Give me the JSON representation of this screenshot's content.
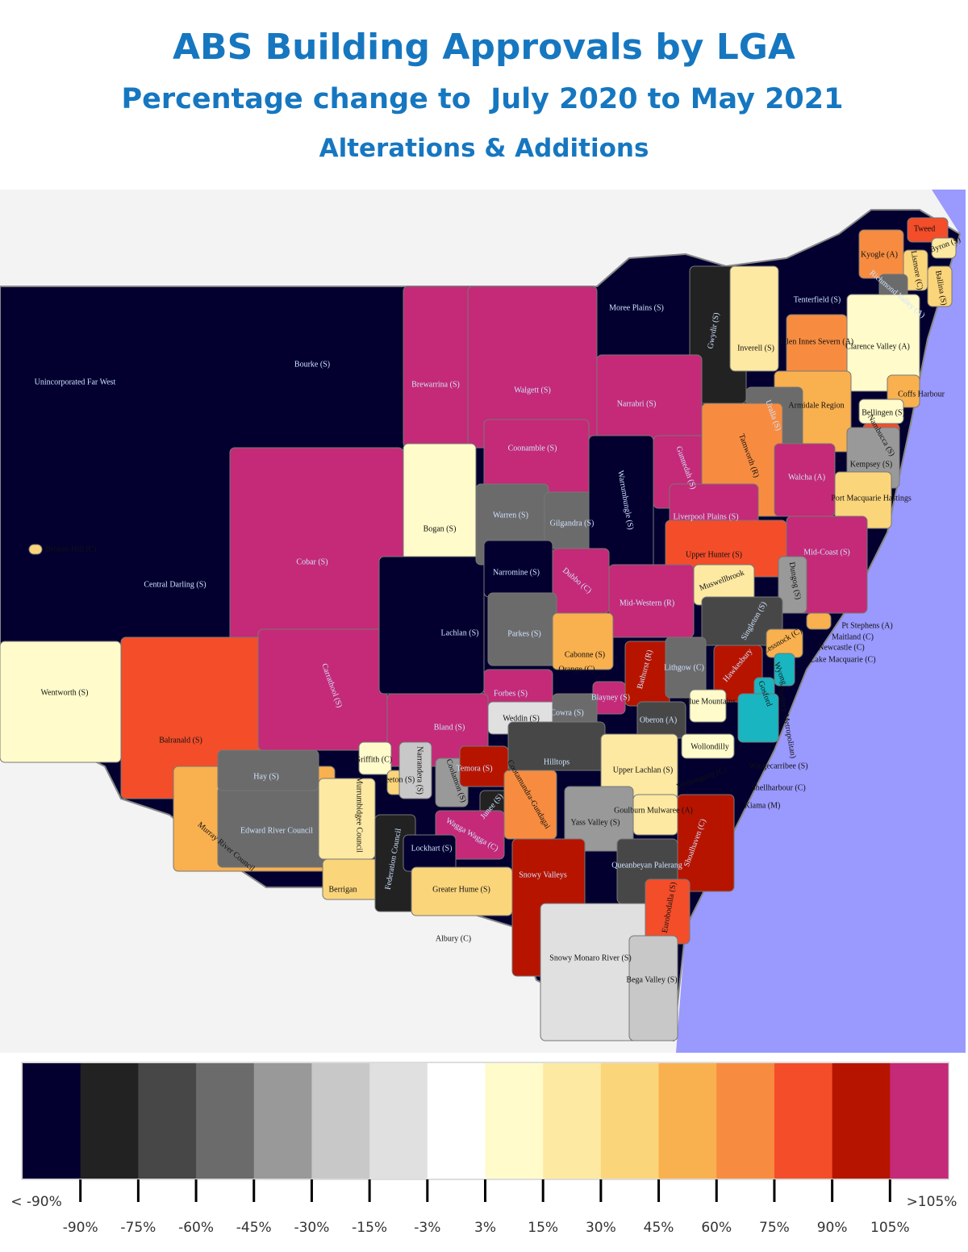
{
  "header": {
    "title": "ABS Building Approvals by LGA",
    "subtitle": "Percentage change to  July 2020 to May 2021",
    "subtitle2": "Alterations & Additions"
  },
  "map": {
    "regions": [
      {
        "name": "Unincorporated Far West",
        "color": "#03002f"
      },
      {
        "name": "Bourke (S)",
        "color": "#03002f"
      },
      {
        "name": "Central Darling (S)",
        "color": "#03002f"
      },
      {
        "name": "Moree Plains (S)",
        "color": "#03002f"
      },
      {
        "name": "Tenterfield (S)",
        "color": "#03002f"
      },
      {
        "name": "Broken Hill (C)",
        "color": "#fbd57a"
      },
      {
        "name": "Cobar (S)",
        "color": "#c42a77"
      },
      {
        "name": "Wentworth (S)",
        "color": "#fffbcb"
      },
      {
        "name": "Balranald (S)",
        "color": "#f44d2a"
      },
      {
        "name": "Carrathool (S)",
        "color": "#c42a77"
      },
      {
        "name": "Brewarrina (S)",
        "color": "#c42a77"
      },
      {
        "name": "Walgett (S)",
        "color": "#c42a77"
      },
      {
        "name": "Gwydir (S)",
        "color": "#222222"
      },
      {
        "name": "Inverell (S)",
        "color": "#fde9a2"
      },
      {
        "name": "Kyogle (A)",
        "color": "#f78c40"
      },
      {
        "name": "Tweed",
        "color": "#f44d2a"
      },
      {
        "name": "Byron (S)",
        "color": "#fde9a2"
      },
      {
        "name": "Lismore (C)",
        "color": "#fbd57a"
      },
      {
        "name": "Ballina (S)",
        "color": "#fbd57a"
      },
      {
        "name": "Richmond Valley (A)",
        "color": "#6b6b6b"
      },
      {
        "name": "Glen Innes Severn (A)",
        "color": "#f78c40"
      },
      {
        "name": "Clarence Valley (A)",
        "color": "#fffbcb"
      },
      {
        "name": "Armidale Region",
        "color": "#f9b04e"
      },
      {
        "name": "Coffs Harbour",
        "color": "#f9b04e"
      },
      {
        "name": "Bellingen (S)",
        "color": "#fffbcb"
      },
      {
        "name": "Uralla (S)",
        "color": "#6b6b6b"
      },
      {
        "name": "Nambucca (S)",
        "color": "#f44d2a"
      },
      {
        "name": "Kempsey (S)",
        "color": "#999999"
      },
      {
        "name": "Narrabri (S)",
        "color": "#c42a77"
      },
      {
        "name": "Coonamble (S)",
        "color": "#c42a77"
      },
      {
        "name": "Bogan (S)",
        "color": "#fffbcb"
      },
      {
        "name": "Lachlan (S)",
        "color": "#03002f"
      },
      {
        "name": "Warren (S)",
        "color": "#6b6b6b"
      },
      {
        "name": "Gilgandra (S)",
        "color": "#6b6b6b"
      },
      {
        "name": "Warrumbungle (S)",
        "color": "#03002f"
      },
      {
        "name": "Gunnedah (S)",
        "color": "#c42a77"
      },
      {
        "name": "Tamworth (R)",
        "color": "#f78c40"
      },
      {
        "name": "Walcha (A)",
        "color": "#c42a77"
      },
      {
        "name": "Port Macquarie Hastings",
        "color": "#fbd57a"
      },
      {
        "name": "Liverpool Plains (S)",
        "color": "#c42a77"
      },
      {
        "name": "Upper Hunter (S)",
        "color": "#f44d2a"
      },
      {
        "name": "Mid-Coast (S)",
        "color": "#c42a77"
      },
      {
        "name": "Narromine (S)",
        "color": "#03002f"
      },
      {
        "name": "Dubbo (C)",
        "color": "#c42a77"
      },
      {
        "name": "Mid-Western (R)",
        "color": "#c42a77"
      },
      {
        "name": "Muswellbrook",
        "color": "#fde9a2"
      },
      {
        "name": "Dungog (S)",
        "color": "#999999"
      },
      {
        "name": "Singleton (S)",
        "color": "#474747"
      },
      {
        "name": "Parkes (S)",
        "color": "#6b6b6b"
      },
      {
        "name": "Cabonne (S)",
        "color": "#f9b04e"
      },
      {
        "name": "Orange (C)",
        "color": "#f9b04e"
      },
      {
        "name": "Bathurst (R)",
        "color": "#b71400"
      },
      {
        "name": "Lithgow (C)",
        "color": "#6b6b6b"
      },
      {
        "name": "Blayney (S)",
        "color": "#c42a77"
      },
      {
        "name": "Forbes (S)",
        "color": "#c42a77"
      },
      {
        "name": "Bland (S)",
        "color": "#c42a77"
      },
      {
        "name": "Weddin (S)",
        "color": "#e0e0e0"
      },
      {
        "name": "Cowra (S)",
        "color": "#6b6b6b"
      },
      {
        "name": "Oberon (A)",
        "color": "#474747"
      },
      {
        "name": "Hawkesbury",
        "color": "#b71400"
      },
      {
        "name": "Blue Mountains",
        "color": "#fffbcb"
      },
      {
        "name": "Cessnock (C)",
        "color": "#f9b04e"
      },
      {
        "name": "Pt Stephens (A)",
        "color": "#f9b04e"
      },
      {
        "name": "Maitland (C)"
      },
      {
        "name": "Newcastle (C)"
      },
      {
        "name": "Lake Macquarie (C)"
      },
      {
        "name": "Wyong",
        "color": "#19b5c0"
      },
      {
        "name": "Gosford",
        "color": "#19b5c0"
      },
      {
        "name": "(Sydney Metropolitan)",
        "color": "#19b5c0"
      },
      {
        "name": "Murray River Council",
        "color": "#f9b04e"
      },
      {
        "name": "Edward River Council",
        "color": "#6b6b6b"
      },
      {
        "name": "Hay (S)",
        "color": "#6b6b6b"
      },
      {
        "name": "Griffith (C)",
        "color": "#fffbcb"
      },
      {
        "name": "Leeton (S)",
        "color": "#fbd57a"
      },
      {
        "name": "Narrandera (S)",
        "color": "#c8c8c8"
      },
      {
        "name": "Coolamon (S)",
        "color": "#999999"
      },
      {
        "name": "Hilltops",
        "color": "#474747"
      },
      {
        "name": "Temora (S)",
        "color": "#b71400"
      },
      {
        "name": "Junee (S)",
        "color": "#222222"
      },
      {
        "name": "Cootamundra-Gundagai",
        "color": "#f78c40"
      },
      {
        "name": "Upper Lachlan (S)",
        "color": "#fde9a2"
      },
      {
        "name": "Wollondilly",
        "color": "#fffbcb"
      },
      {
        "name": "Wingecarribee (S)",
        "color": "#f9b04e"
      },
      {
        "name": "Wollongong (C)"
      },
      {
        "name": "Shellharbour (C)"
      },
      {
        "name": "Kiama (M)"
      },
      {
        "name": "Goulburn Mulwaree (A)",
        "color": "#fde9a2"
      },
      {
        "name": "Yass Valley (S)",
        "color": "#999999"
      },
      {
        "name": "Murrumbidgee Council",
        "color": "#fde9a2"
      },
      {
        "name": "Berrigan",
        "color": "#fbd57a"
      },
      {
        "name": "Federation Council",
        "color": "#222222"
      },
      {
        "name": "Wagga Wagga (C)",
        "color": "#c42a77"
      },
      {
        "name": "Lockhart (S)",
        "color": "#03002f"
      },
      {
        "name": "Greater Hume (S)",
        "color": "#fbd57a"
      },
      {
        "name": "Albury (C)"
      },
      {
        "name": "Snowy Valleys",
        "color": "#b71400"
      },
      {
        "name": "Snowy Monaro River (S)",
        "color": "#e0e0e0"
      },
      {
        "name": "Queanbeyan Palerang",
        "color": "#474747"
      },
      {
        "name": "Shoalhaven (C)",
        "color": "#b71400"
      },
      {
        "name": "Eurobodalla (S)",
        "color": "#f44d2a"
      },
      {
        "name": "Bega Valley (S)",
        "color": "#c8c8c8"
      }
    ]
  },
  "legend": {
    "colors": [
      "#03002f",
      "#222222",
      "#474747",
      "#6b6b6b",
      "#999999",
      "#c8c8c8",
      "#e0e0e0",
      "#ffffff",
      "#fffbcb",
      "#fde9a2",
      "#fbd57a",
      "#f9b04e",
      "#f78c40",
      "#f44d2a",
      "#b71400",
      "#c42a77"
    ],
    "low_label": "< -90%",
    "high_label": ">105%",
    "thresholds": [
      {
        "value": -90,
        "label": "-90%"
      },
      {
        "value": -75,
        "label": "-75%"
      },
      {
        "value": -60,
        "label": "-60%"
      },
      {
        "value": -45,
        "label": "-45%"
      },
      {
        "value": -30,
        "label": "-30%"
      },
      {
        "value": -15,
        "label": "-15%"
      },
      {
        "value": -3,
        "label": "-3%"
      },
      {
        "value": 3,
        "label": "3%"
      },
      {
        "value": 15,
        "label": "15%"
      },
      {
        "value": 30,
        "label": "30%"
      },
      {
        "value": 45,
        "label": "45%"
      },
      {
        "value": 60,
        "label": "60%"
      },
      {
        "value": 75,
        "label": "75%"
      },
      {
        "value": 90,
        "label": "90%"
      },
      {
        "value": 105,
        "label": "105%"
      }
    ]
  }
}
